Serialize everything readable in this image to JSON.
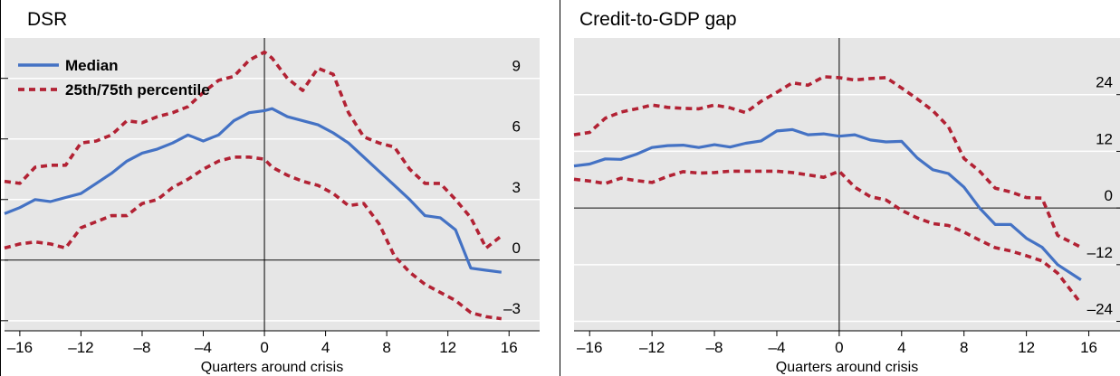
{
  "colors": {
    "panel_bg": "#e6e6e6",
    "median": "#4472c4",
    "percentile": "#b22234",
    "axis": "#000000"
  },
  "chart_data": [
    {
      "type": "line",
      "title": "DSR",
      "xlabel": "Quarters around crisis",
      "ylabel": "",
      "xlim": [
        -17,
        18
      ],
      "ylim": [
        -3.5,
        11
      ],
      "x_ticks": [
        "–16",
        "–12",
        "–8",
        "–4",
        "0",
        "4",
        "8",
        "12",
        "16"
      ],
      "x_tick_values": [
        -16,
        -12,
        -8,
        -4,
        0,
        4,
        8,
        12,
        16
      ],
      "y_ticks": [
        "–3",
        "0",
        "3",
        "6",
        "9"
      ],
      "y_tick_values": [
        -3,
        0,
        3,
        6,
        9
      ],
      "legend": {
        "placement": "top-left",
        "entries": [
          "Median",
          "25th/75th percentile"
        ]
      },
      "series": [
        {
          "name": "Median",
          "style": "solid",
          "x": [
            -17,
            -16,
            -15,
            -14,
            -13,
            -12,
            -11,
            -10,
            -9,
            -8,
            -7,
            -6,
            -5,
            -4,
            -3,
            -2,
            -1,
            0,
            0.5,
            1.5,
            2.5,
            3.5,
            4.5,
            5.5,
            6.5,
            7.5,
            8.5,
            9.5,
            10.5,
            11.5,
            12.5,
            13.5,
            14.5,
            15.5
          ],
          "y": [
            2.3,
            2.6,
            3.0,
            2.9,
            3.1,
            3.3,
            3.8,
            4.3,
            4.9,
            5.3,
            5.5,
            5.8,
            6.2,
            5.9,
            6.2,
            6.9,
            7.3,
            7.4,
            7.5,
            7.1,
            6.9,
            6.7,
            6.3,
            5.8,
            5.1,
            4.4,
            3.7,
            3.0,
            2.2,
            2.1,
            1.5,
            -0.4,
            -0.5,
            -0.6
          ]
        },
        {
          "name": "25th percentile",
          "style": "dashed",
          "x": [
            -17,
            -16,
            -15,
            -14,
            -13,
            -12,
            -11,
            -10,
            -9,
            -8,
            -7,
            -6,
            -5,
            -4,
            -3,
            -2,
            -1,
            0,
            0.5,
            1.5,
            2.5,
            3.5,
            4.5,
            5.5,
            6.5,
            7.5,
            8.5,
            9.5,
            10.5,
            11.5,
            12.5,
            13.5,
            14.5,
            15.5
          ],
          "y": [
            0.6,
            0.8,
            0.9,
            0.8,
            0.6,
            1.6,
            1.9,
            2.2,
            2.2,
            2.8,
            3.0,
            3.6,
            4.0,
            4.5,
            4.9,
            5.1,
            5.1,
            5.0,
            4.6,
            4.2,
            3.9,
            3.7,
            3.3,
            2.7,
            2.8,
            1.8,
            0.2,
            -0.6,
            -1.2,
            -1.6,
            -2.0,
            -2.6,
            -2.8,
            -2.9
          ]
        },
        {
          "name": "75th percentile",
          "style": "dashed",
          "x": [
            -17,
            -16,
            -15,
            -14,
            -13,
            -12,
            -11,
            -10,
            -9,
            -8,
            -7,
            -6,
            -5,
            -4,
            -3,
            -2,
            -1,
            0,
            0.5,
            1.5,
            2.5,
            3.5,
            4.5,
            5.5,
            6.5,
            7.5,
            8.5,
            9.5,
            10.5,
            11.5,
            12.5,
            13.5,
            14.5,
            15.5
          ],
          "y": [
            3.9,
            3.8,
            4.6,
            4.7,
            4.7,
            5.8,
            5.9,
            6.2,
            6.9,
            6.8,
            7.1,
            7.3,
            7.6,
            8.3,
            8.9,
            9.1,
            9.9,
            10.3,
            10.0,
            9.0,
            8.4,
            9.5,
            9.2,
            7.3,
            6.1,
            5.8,
            5.6,
            4.5,
            3.8,
            3.8,
            3.0,
            2.1,
            0.6,
            1.2
          ]
        }
      ]
    },
    {
      "type": "line",
      "title": "Credit-to-GDP gap",
      "xlabel": "Quarters around crisis",
      "ylabel": "",
      "xlim": [
        -17,
        18
      ],
      "ylim": [
        -26,
        36
      ],
      "x_ticks": [
        "–16",
        "–12",
        "–8",
        "–4",
        "0",
        "4",
        "8",
        "12",
        "16"
      ],
      "x_tick_values": [
        -16,
        -12,
        -8,
        -4,
        0,
        4,
        8,
        12,
        16
      ],
      "y_ticks": [
        "–24",
        "–12",
        "0",
        "12",
        "24"
      ],
      "y_tick_values": [
        -24,
        -12,
        0,
        12,
        24
      ],
      "series": [
        {
          "name": "Median",
          "style": "solid",
          "x": [
            -17,
            -16,
            -15,
            -14,
            -13,
            -12,
            -11,
            -10,
            -9,
            -8,
            -7,
            -6,
            -5,
            -4,
            -3,
            -2,
            -1,
            0,
            1,
            2,
            3,
            4,
            5,
            6,
            7,
            8,
            9,
            10,
            11,
            12,
            13,
            14,
            15.5
          ],
          "y": [
            8.9,
            9.3,
            10.4,
            10.3,
            11.4,
            12.8,
            13.2,
            13.3,
            12.8,
            13.4,
            12.9,
            13.7,
            14.2,
            16.3,
            16.6,
            15.5,
            15.7,
            15.2,
            15.5,
            14.4,
            14.0,
            14.1,
            10.6,
            8.1,
            7.3,
            4.4,
            0.0,
            -3.5,
            -3.5,
            -6.4,
            -8.3,
            -12.0,
            -15.2
          ]
        },
        {
          "name": "25th percentile",
          "style": "dashed",
          "x": [
            -17,
            -16,
            -15,
            -14,
            -13,
            -12,
            -11,
            -10,
            -9,
            -8,
            -7,
            -6,
            -5,
            -4,
            -3,
            -2,
            -1,
            0,
            1,
            2,
            3,
            4,
            5,
            6,
            7,
            8,
            9,
            10,
            11,
            12,
            13,
            14,
            15.5
          ],
          "y": [
            6.1,
            5.7,
            5.2,
            6.3,
            5.8,
            5.4,
            6.7,
            7.7,
            7.4,
            7.5,
            7.8,
            7.8,
            7.8,
            7.8,
            7.5,
            7.0,
            6.5,
            7.8,
            4.4,
            2.4,
            1.7,
            -0.5,
            -2.1,
            -3.3,
            -3.7,
            -5.1,
            -6.8,
            -8.4,
            -9.1,
            -10.1,
            -11.2,
            -13.8,
            -20.2
          ]
        },
        {
          "name": "75th percentile",
          "style": "dashed",
          "x": [
            -17,
            -16,
            -15,
            -14,
            -13,
            -12,
            -11,
            -10,
            -9,
            -8,
            -7,
            -6,
            -5,
            -4,
            -3,
            -2,
            -1,
            0,
            1,
            2,
            3,
            4,
            5,
            6,
            7,
            8,
            9,
            10,
            11,
            12,
            13,
            14,
            15.5
          ],
          "y": [
            15.5,
            16.0,
            19.0,
            20.3,
            21.0,
            21.8,
            21.3,
            21.1,
            21.0,
            21.8,
            21.2,
            20.2,
            22.6,
            24.5,
            26.5,
            26.0,
            27.8,
            27.6,
            27.1,
            27.4,
            27.6,
            25.4,
            23.1,
            20.6,
            17.2,
            10.5,
            7.8,
            4.2,
            3.4,
            2.2,
            2.1,
            -5.8,
            -8.3
          ]
        }
      ]
    }
  ]
}
